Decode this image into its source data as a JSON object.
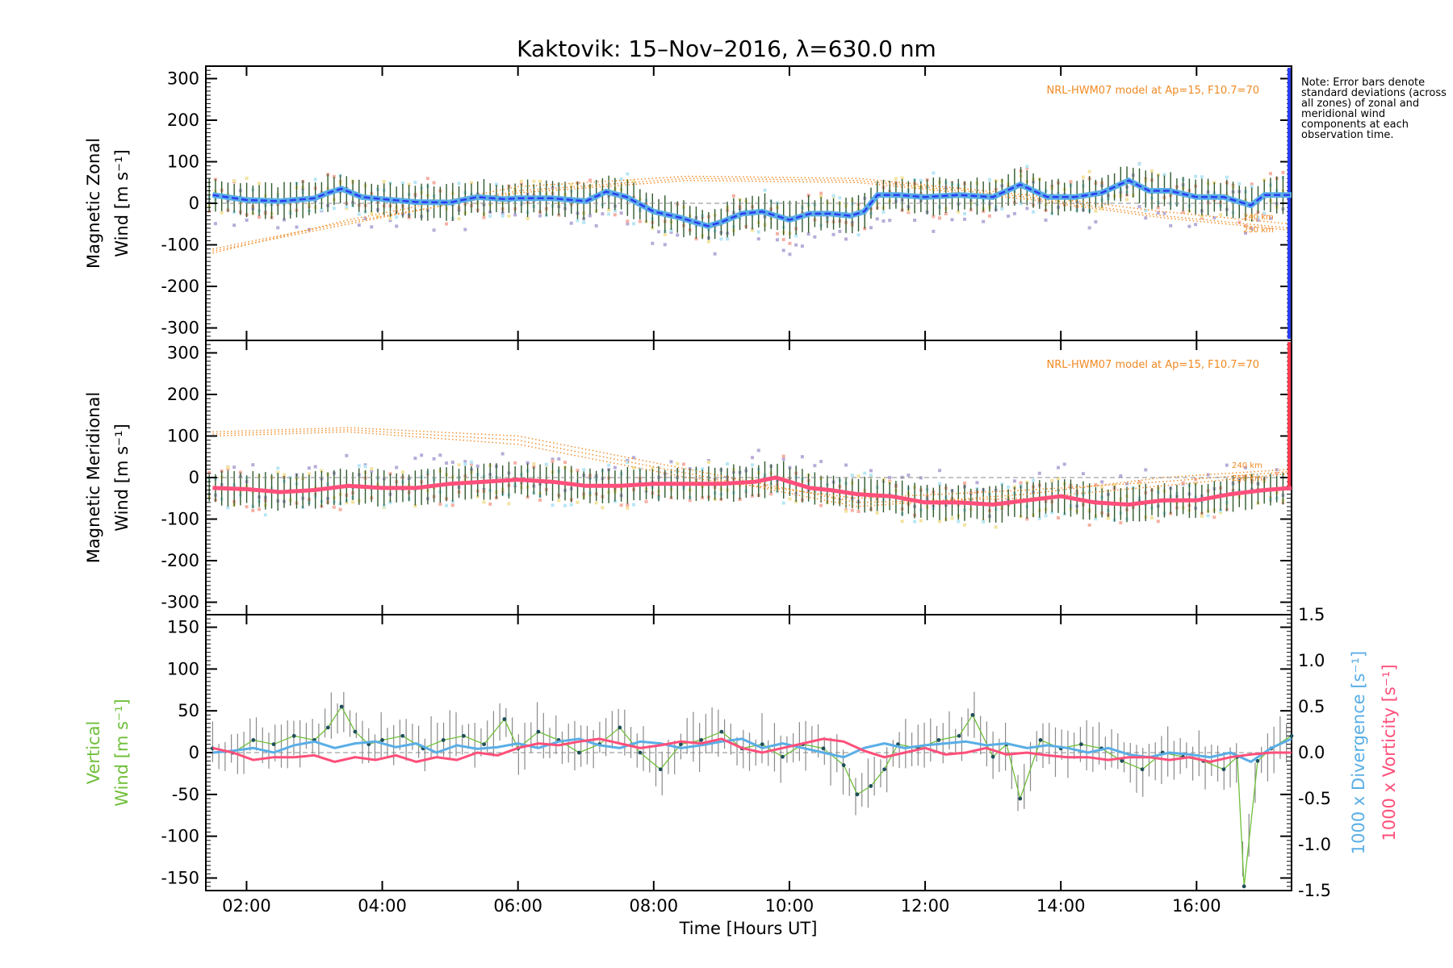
{
  "title": "Kaktovik: 15–Nov–2016, λ=630.0 nm",
  "note": "Note: Error bars denote standard deviations (across all zones) of zonal and meridional wind components at each observation time.",
  "colors": {
    "zonal": "#2a3cf0",
    "zonal_light": "#5aaee6",
    "meridional": "#ff4f7a",
    "vertical": "#6fbf3a",
    "divergence": "#5aaee6",
    "vorticity": "#ff4f7a",
    "model": "#f08a24",
    "errorbar": "#2f5a2c",
    "scatter_purple": "#b7acd8",
    "scatter_pink": "#f5b0a4",
    "scatter_yellow": "#f3e3a0",
    "scatter_cyan": "#b8e6f5"
  },
  "chart_data": [
    {
      "type": "line",
      "panel": "zonal",
      "ylabel_line1": "Magnetic Zonal",
      "ylabel_line2": "Wind [m s⁻¹]",
      "ylim": [
        -330,
        330
      ],
      "yticks": [
        300,
        200,
        100,
        0,
        -100,
        -200,
        -300
      ],
      "xlim": [
        1.4,
        17.4
      ],
      "model_note": "NRL-HWM07 model at Ap=15, F10.7=70",
      "model_altitudes": [
        "240 km",
        "250 km"
      ],
      "series": [
        {
          "color": "#2a3cf0",
          "x": [
            1.5,
            2.0,
            2.5,
            3.0,
            3.2,
            3.4,
            3.7,
            4.0,
            4.5,
            5.0,
            5.4,
            5.8,
            6.0,
            6.5,
            7.0,
            7.3,
            7.6,
            8.0,
            8.4,
            8.8,
            9.0,
            9.3,
            9.6,
            10.0,
            10.3,
            10.6,
            10.9,
            11.1,
            11.3,
            11.6,
            12.0,
            12.5,
            13.0,
            13.4,
            13.8,
            14.2,
            14.6,
            15.0,
            15.3,
            15.6,
            16.0,
            16.4,
            16.8,
            17.0,
            17.4
          ],
          "values": [
            20,
            8,
            5,
            12,
            25,
            35,
            15,
            10,
            3,
            2,
            15,
            10,
            12,
            12,
            5,
            28,
            15,
            -20,
            -35,
            -55,
            -45,
            -25,
            -20,
            -40,
            -25,
            -25,
            -30,
            -20,
            20,
            20,
            15,
            20,
            15,
            45,
            15,
            15,
            25,
            55,
            30,
            30,
            15,
            15,
            -5,
            20,
            20
          ]
        }
      ]
    },
    {
      "type": "line",
      "panel": "meridional",
      "ylabel_line1": "Magnetic Meridional",
      "ylabel_line2": "Wind [m s⁻¹]",
      "ylim": [
        -330,
        330
      ],
      "yticks": [
        300,
        200,
        100,
        0,
        -100,
        -200,
        -300
      ],
      "xlim": [
        1.4,
        17.4
      ],
      "model_note": "NRL-HWM07 model at Ap=15, F10.7=70",
      "model_altitudes": [
        "240 km",
        "250 km"
      ],
      "series": [
        {
          "color": "#ff4f7a",
          "x": [
            1.5,
            2.0,
            2.5,
            3.0,
            3.5,
            4.0,
            4.5,
            5.0,
            5.5,
            6.0,
            6.5,
            7.0,
            7.5,
            8.0,
            8.5,
            9.0,
            9.5,
            9.8,
            10.0,
            10.3,
            10.6,
            11.0,
            11.5,
            12.0,
            12.5,
            13.0,
            13.5,
            14.0,
            14.5,
            15.0,
            15.5,
            16.0,
            16.5,
            17.0,
            17.4
          ],
          "values": [
            -25,
            -28,
            -35,
            -30,
            -20,
            -25,
            -25,
            -15,
            -10,
            -5,
            -10,
            -20,
            -20,
            -15,
            -15,
            -15,
            -10,
            0,
            -10,
            -25,
            -30,
            -40,
            -45,
            -60,
            -60,
            -65,
            -55,
            -45,
            -60,
            -65,
            -55,
            -55,
            -40,
            -30,
            -25
          ]
        }
      ]
    },
    {
      "type": "line",
      "panel": "vertical",
      "ylabel_line1": "Vertical",
      "ylabel_line2": "Wind [m s⁻¹]",
      "ylim": [
        -165,
        165
      ],
      "yticks": [
        150,
        100,
        50,
        0,
        -50,
        -100,
        -150
      ],
      "y2lim": [
        -1.5,
        1.5
      ],
      "y2ticks": [
        "1.5",
        "1.0",
        "0.5",
        "0.0",
        "-0.5",
        "-1.0",
        "-1.5"
      ],
      "y2label_divergence": "1000 x Divergence [s⁻¹]",
      "y2label_vorticity": "1000 x Vorticity [s⁻¹]",
      "xlim": [
        1.4,
        17.4
      ],
      "xticks": [
        "02:00",
        "04:00",
        "06:00",
        "08:00",
        "10:00",
        "12:00",
        "14:00",
        "16:00"
      ],
      "xtick_values": [
        2,
        4,
        6,
        8,
        10,
        12,
        14,
        16
      ],
      "xlabel": "Time [Hours UT]",
      "series": [
        {
          "color": "#6fbf3a",
          "x": [
            1.5,
            1.8,
            2.1,
            2.4,
            2.7,
            3.0,
            3.2,
            3.4,
            3.6,
            3.8,
            4.0,
            4.3,
            4.6,
            4.9,
            5.2,
            5.5,
            5.8,
            6.0,
            6.3,
            6.6,
            6.9,
            7.2,
            7.5,
            7.8,
            8.1,
            8.4,
            8.7,
            9.0,
            9.3,
            9.6,
            9.9,
            10.2,
            10.5,
            10.8,
            11.0,
            11.2,
            11.4,
            11.6,
            11.9,
            12.2,
            12.5,
            12.7,
            13.0,
            13.2,
            13.4,
            13.7,
            14.0,
            14.3,
            14.6,
            14.9,
            15.2,
            15.5,
            15.8,
            16.1,
            16.4,
            16.6,
            16.7,
            16.9,
            17.1,
            17.4
          ],
          "values": [
            5,
            0,
            15,
            10,
            20,
            15,
            30,
            55,
            25,
            10,
            15,
            20,
            5,
            15,
            20,
            10,
            40,
            5,
            25,
            15,
            0,
            10,
            30,
            0,
            -20,
            10,
            15,
            25,
            5,
            10,
            -5,
            10,
            5,
            -15,
            -50,
            -40,
            -20,
            10,
            5,
            15,
            20,
            45,
            -5,
            10,
            -55,
            15,
            5,
            10,
            5,
            -10,
            -20,
            0,
            -5,
            -10,
            -20,
            -5,
            -160,
            -10,
            5,
            20
          ]
        },
        {
          "color": "#5aaee6",
          "x": [
            1.5,
            1.8,
            2.1,
            2.4,
            2.7,
            3.0,
            3.3,
            3.6,
            3.9,
            4.2,
            4.5,
            4.8,
            5.1,
            5.4,
            5.7,
            6.0,
            6.3,
            6.6,
            6.9,
            7.2,
            7.5,
            7.8,
            8.1,
            8.4,
            8.7,
            9.0,
            9.3,
            9.6,
            9.9,
            10.2,
            10.5,
            10.8,
            11.1,
            11.4,
            11.7,
            12.0,
            12.3,
            12.6,
            12.9,
            13.2,
            13.5,
            13.8,
            14.1,
            14.4,
            14.7,
            15.0,
            15.3,
            15.6,
            15.9,
            16.2,
            16.5,
            16.8,
            17.1,
            17.4
          ],
          "values": [
            0.0,
            0.02,
            0.05,
            0.0,
            0.08,
            0.12,
            0.05,
            0.1,
            0.12,
            0.06,
            0.1,
            0.0,
            0.08,
            0.04,
            0.06,
            0.1,
            0.05,
            0.12,
            0.15,
            0.08,
            0.05,
            0.12,
            0.1,
            0.05,
            0.08,
            0.12,
            0.15,
            0.05,
            0.1,
            0.05,
            0.0,
            -0.05,
            0.05,
            0.1,
            0.05,
            0.08,
            0.1,
            0.12,
            0.08,
            0.1,
            0.05,
            0.08,
            0.05,
            0.0,
            0.05,
            -0.02,
            -0.05,
            0.0,
            -0.02,
            -0.05,
            0.0,
            -0.1,
            0.05,
            0.15
          ]
        },
        {
          "color": "#ff4f7a",
          "x": [
            1.5,
            1.8,
            2.1,
            2.4,
            2.7,
            3.0,
            3.3,
            3.6,
            3.9,
            4.2,
            4.5,
            4.8,
            5.1,
            5.4,
            5.7,
            6.0,
            6.3,
            6.6,
            6.9,
            7.2,
            7.5,
            7.8,
            8.1,
            8.4,
            8.7,
            9.0,
            9.3,
            9.6,
            9.9,
            10.2,
            10.5,
            10.8,
            11.1,
            11.4,
            11.7,
            12.0,
            12.3,
            12.6,
            12.9,
            13.2,
            13.5,
            13.8,
            14.1,
            14.4,
            14.7,
            15.0,
            15.3,
            15.6,
            15.9,
            16.2,
            16.5,
            16.8,
            17.1,
            17.4
          ],
          "values": [
            0.05,
            0.0,
            -0.08,
            -0.05,
            -0.05,
            -0.03,
            -0.1,
            -0.05,
            -0.08,
            -0.03,
            -0.1,
            -0.05,
            -0.08,
            0.0,
            -0.03,
            0.05,
            0.1,
            0.08,
            0.12,
            0.15,
            0.1,
            0.05,
            0.08,
            0.12,
            0.1,
            0.15,
            0.05,
            0.0,
            0.05,
            0.1,
            0.15,
            0.12,
            0.02,
            -0.05,
            0.0,
            0.05,
            -0.02,
            0.0,
            0.05,
            -0.02,
            0.0,
            -0.03,
            -0.05,
            -0.05,
            -0.08,
            -0.05,
            -0.05,
            -0.08,
            -0.05,
            -0.1,
            -0.05,
            -0.02,
            0.0,
            0.0
          ]
        }
      ]
    }
  ]
}
